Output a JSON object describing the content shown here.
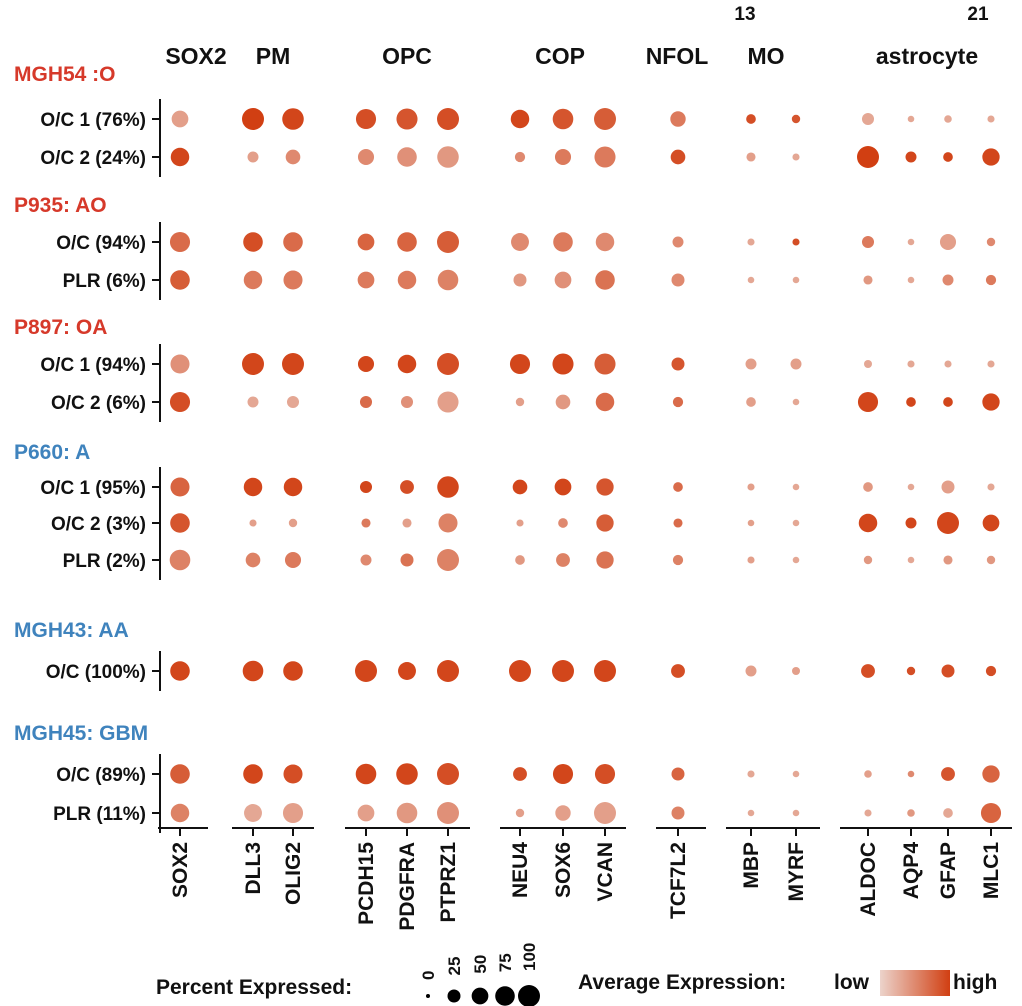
{
  "chart_data": {
    "type": "dotplot",
    "gene_groups": [
      {
        "label": "SOX2",
        "genes": [
          "SOX2"
        ]
      },
      {
        "label": "PM",
        "genes": [
          "DLL3",
          "OLIG2"
        ]
      },
      {
        "label": "OPC",
        "genes": [
          "PCDH15",
          "PDGFRA",
          "PTPRZ1"
        ]
      },
      {
        "label": "COP",
        "genes": [
          "NEU4",
          "SOX6",
          "VCAN"
        ]
      },
      {
        "label": "NFOL",
        "genes": [
          "TCF7L2"
        ]
      },
      {
        "label": "MO",
        "genes": [
          "MBP",
          "MYRF"
        ]
      },
      {
        "label": "astrocyte",
        "genes": [
          "ALDOC",
          "AQP4",
          "GFAP",
          "MLC1"
        ]
      }
    ],
    "top_numbers": [
      "13",
      "21"
    ],
    "samples": [
      {
        "label": "MGH54 :O",
        "color": "#d6392a",
        "rows": [
          {
            "label": "O/C 1 (76%)",
            "pct": [
              50,
              100,
              95,
              80,
              90,
              100,
              65,
              85,
              100,
              40,
              10,
              6,
              20,
              2,
              4,
              3
            ],
            "expr": [
              0.35,
              1.0,
              0.95,
              0.9,
              0.85,
              0.9,
              0.95,
              0.85,
              0.8,
              0.6,
              0.9,
              0.85,
              0.3,
              0.3,
              0.3,
              0.3
            ]
          },
          {
            "label": "O/C 2 (24%)",
            "pct": [
              65,
              15,
              35,
              45,
              75,
              95,
              12,
              45,
              90,
              35,
              8,
              3,
              100,
              15,
              10,
              55
            ],
            "expr": [
              0.95,
              0.35,
              0.5,
              0.5,
              0.45,
              0.4,
              0.5,
              0.6,
              0.6,
              0.9,
              0.35,
              0.3,
              1.0,
              0.95,
              0.95,
              0.95
            ]
          }
        ]
      },
      {
        "label": "P935: AO",
        "color": "#d6392a",
        "rows": [
          {
            "label": "O/C (94%)",
            "pct": [
              80,
              75,
              75,
              50,
              75,
              100,
              60,
              75,
              65,
              15,
              3,
              3,
              20,
              2,
              45,
              6
            ],
            "expr": [
              0.7,
              0.9,
              0.7,
              0.75,
              0.75,
              0.8,
              0.5,
              0.6,
              0.5,
              0.5,
              0.3,
              0.9,
              0.6,
              0.3,
              0.35,
              0.5
            ]
          },
          {
            "label": "PLR (6%)",
            "pct": [
              75,
              65,
              70,
              50,
              65,
              85,
              25,
              50,
              75,
              25,
              2,
              2,
              8,
              2,
              15,
              12
            ],
            "expr": [
              0.8,
              0.6,
              0.6,
              0.6,
              0.6,
              0.55,
              0.4,
              0.45,
              0.65,
              0.5,
              0.3,
              0.3,
              0.4,
              0.3,
              0.5,
              0.6
            ]
          }
        ]
      },
      {
        "label": "P897: OA",
        "color": "#d6392a",
        "rows": [
          {
            "label": "O/C 1 (94%)",
            "pct": [
              70,
              100,
              100,
              45,
              65,
              100,
              80,
              90,
              90,
              25,
              15,
              15,
              5,
              3,
              3,
              3
            ],
            "expr": [
              0.45,
              0.95,
              0.95,
              0.95,
              0.95,
              0.9,
              0.95,
              0.95,
              0.8,
              0.85,
              0.35,
              0.35,
              0.3,
              0.3,
              0.3,
              0.3
            ]
          },
          {
            "label": "O/C 2 (6%)",
            "pct": [
              80,
              15,
              20,
              20,
              20,
              90,
              6,
              35,
              65,
              12,
              10,
              2,
              80,
              10,
              10,
              55
            ],
            "expr": [
              0.9,
              0.3,
              0.3,
              0.7,
              0.45,
              0.35,
              0.35,
              0.4,
              0.7,
              0.7,
              0.35,
              0.3,
              0.95,
              0.95,
              0.95,
              0.95
            ]
          }
        ]
      },
      {
        "label": "P660: A",
        "color": "#3f83bd",
        "rows": [
          {
            "label": "O/C 1 (95%)",
            "pct": [
              70,
              65,
              65,
              20,
              30,
              95,
              35,
              50,
              55,
              10,
              3,
              2,
              10,
              2,
              25,
              3
            ],
            "expr": [
              0.75,
              0.95,
              0.95,
              0.95,
              0.9,
              0.95,
              0.95,
              0.95,
              0.85,
              0.7,
              0.35,
              0.3,
              0.4,
              0.3,
              0.35,
              0.3
            ]
          },
          {
            "label": "O/C 2 (3%)",
            "pct": [
              75,
              3,
              6,
              8,
              8,
              70,
              3,
              10,
              55,
              8,
              2,
              2,
              65,
              15,
              100,
              50
            ],
            "expr": [
              0.85,
              0.35,
              0.35,
              0.6,
              0.35,
              0.55,
              0.35,
              0.5,
              0.8,
              0.7,
              0.35,
              0.3,
              0.95,
              0.95,
              0.95,
              0.95
            ]
          },
          {
            "label": "PLR (2%)",
            "pct": [
              85,
              35,
              45,
              15,
              25,
              100,
              10,
              30,
              55,
              12,
              3,
              2,
              6,
              2,
              8,
              6
            ],
            "expr": [
              0.55,
              0.55,
              0.6,
              0.5,
              0.65,
              0.55,
              0.4,
              0.55,
              0.65,
              0.55,
              0.35,
              0.3,
              0.4,
              0.3,
              0.4,
              0.4
            ]
          }
        ]
      },
      {
        "label": "MGH43: AA",
        "color": "#3f83bd",
        "rows": [
          {
            "label": "O/C (100%)",
            "pct": [
              75,
              85,
              75,
              100,
              60,
              100,
              100,
              100,
              100,
              30,
              15,
              5,
              30,
              6,
              25,
              12
            ],
            "expr": [
              0.95,
              0.95,
              0.95,
              0.95,
              0.95,
              0.95,
              0.95,
              0.95,
              0.95,
              0.9,
              0.35,
              0.35,
              0.9,
              0.9,
              0.9,
              0.9
            ]
          }
        ]
      },
      {
        "label": "MGH45: GBM",
        "color": "#3f83bd",
        "rows": [
          {
            "label": "O/C (89%)",
            "pct": [
              75,
              75,
              70,
              85,
              95,
              100,
              30,
              80,
              80,
              25,
              3,
              2,
              4,
              2,
              30,
              55
            ],
            "expr": [
              0.8,
              0.95,
              0.9,
              0.95,
              0.95,
              0.9,
              0.9,
              0.95,
              0.9,
              0.75,
              0.3,
              0.3,
              0.35,
              0.5,
              0.85,
              0.75
            ]
          },
          {
            "label": "PLR (11%)",
            "pct": [
              65,
              60,
              80,
              50,
              85,
              100,
              6,
              40,
              100,
              25,
              2,
              2,
              3,
              4,
              10,
              80
            ],
            "expr": [
              0.55,
              0.3,
              0.35,
              0.35,
              0.4,
              0.45,
              0.35,
              0.35,
              0.35,
              0.55,
              0.3,
              0.3,
              0.3,
              0.4,
              0.3,
              0.75
            ]
          }
        ]
      }
    ],
    "legend": {
      "size_title": "Percent Expressed:",
      "size_values": [
        "0",
        "25",
        "50",
        "75",
        "100"
      ],
      "color_title": "Average Expression:",
      "color_low": "low",
      "color_high": "high",
      "color_low_hex": "#ecd3cb",
      "color_high_hex": "#d13f12"
    }
  }
}
